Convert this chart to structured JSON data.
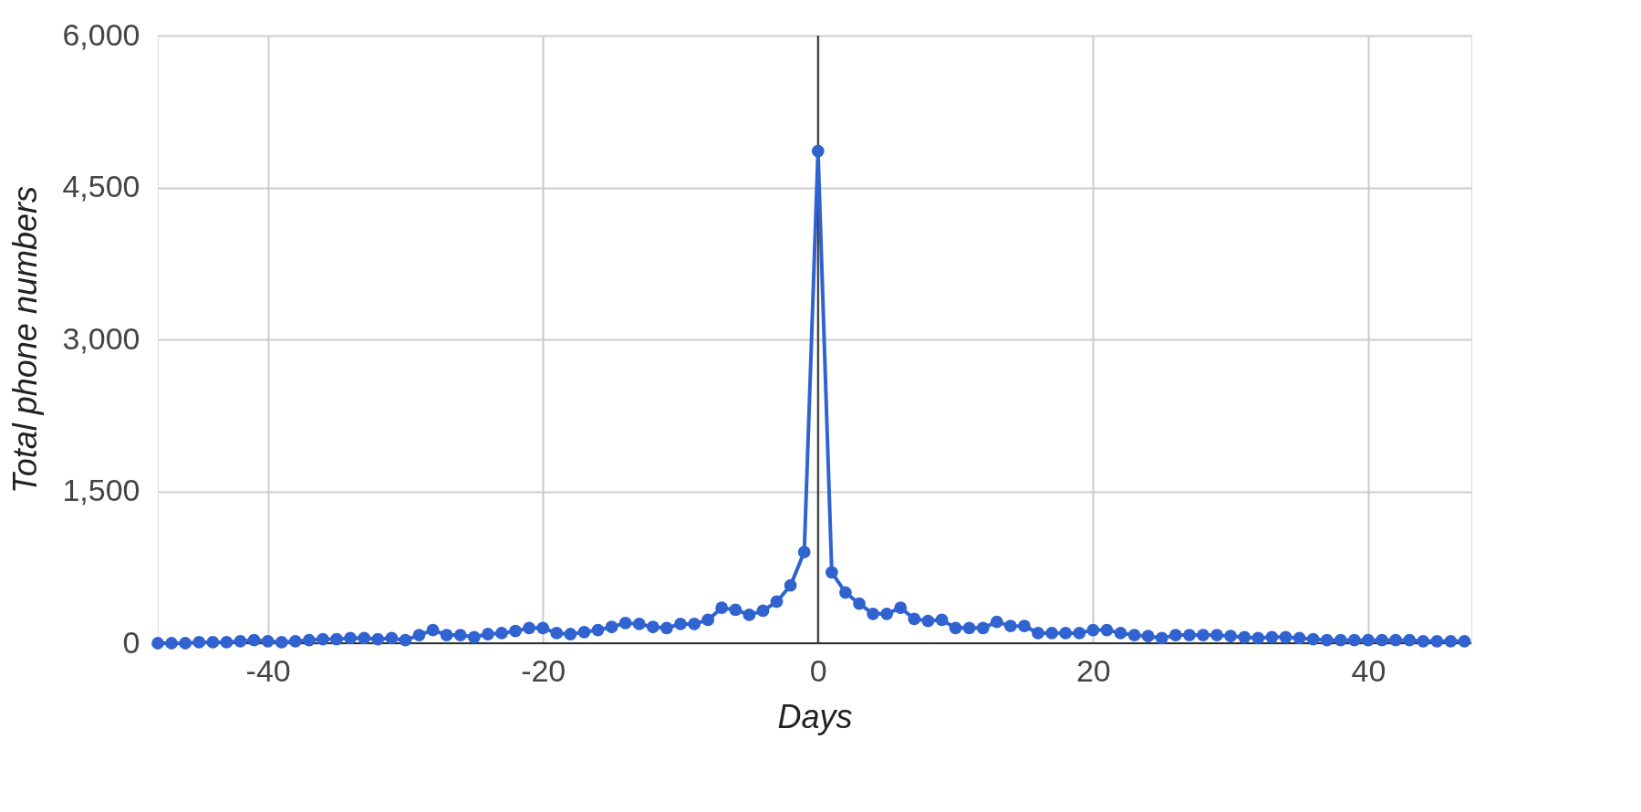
{
  "chart_data": {
    "type": "line",
    "xlabel": "Days",
    "ylabel": "Total phone numbers",
    "x": [
      -48,
      -47,
      -46,
      -45,
      -44,
      -43,
      -42,
      -41,
      -40,
      -39,
      -38,
      -37,
      -36,
      -35,
      -34,
      -33,
      -32,
      -31,
      -30,
      -29,
      -28,
      -27,
      -26,
      -25,
      -24,
      -23,
      -22,
      -21,
      -20,
      -19,
      -18,
      -17,
      -16,
      -15,
      -14,
      -13,
      -12,
      -11,
      -10,
      -9,
      -8,
      -7,
      -6,
      -5,
      -4,
      -3,
      -2,
      -1,
      0,
      1,
      2,
      3,
      4,
      5,
      6,
      7,
      8,
      9,
      10,
      11,
      12,
      13,
      14,
      15,
      16,
      17,
      18,
      19,
      20,
      21,
      22,
      23,
      24,
      25,
      26,
      27,
      28,
      29,
      30,
      31,
      32,
      33,
      34,
      35,
      36,
      37,
      38,
      39,
      40,
      41,
      42,
      43,
      44,
      45,
      46,
      47
    ],
    "series": [
      {
        "color": "#3063d0",
        "values": [
          0,
          0,
          0,
          10,
          10,
          10,
          20,
          30,
          20,
          10,
          20,
          30,
          40,
          40,
          50,
          50,
          40,
          50,
          30,
          80,
          130,
          80,
          80,
          60,
          90,
          100,
          120,
          150,
          150,
          100,
          90,
          110,
          130,
          160,
          200,
          190,
          160,
          150,
          190,
          190,
          230,
          350,
          330,
          280,
          320,
          410,
          570,
          900,
          4860,
          700,
          500,
          390,
          290,
          290,
          350,
          240,
          220,
          230,
          150,
          150,
          150,
          210,
          170,
          170,
          100,
          100,
          100,
          100,
          130,
          130,
          100,
          80,
          70,
          50,
          80,
          80,
          80,
          80,
          70,
          60,
          50,
          60,
          60,
          50,
          40,
          30,
          30,
          30,
          30,
          30,
          30,
          30,
          20,
          20,
          20,
          20
        ]
      }
    ],
    "xlim": [
      -48,
      47.5
    ],
    "xticks": [
      -40,
      -20,
      0,
      20,
      40
    ],
    "ylim": [
      0,
      6000
    ],
    "yticks": [
      0,
      {
        "value": 1500,
        "label": "1,500"
      },
      {
        "value": 3000,
        "label": "3,000"
      },
      {
        "value": 4500,
        "label": "4,500"
      },
      {
        "value": 6000,
        "label": "6,000"
      }
    ],
    "ref_lines": [
      {
        "axis": "x",
        "value": 0,
        "color": "#333333"
      }
    ],
    "grid": true,
    "marker": "circle",
    "line_style": "solid"
  }
}
